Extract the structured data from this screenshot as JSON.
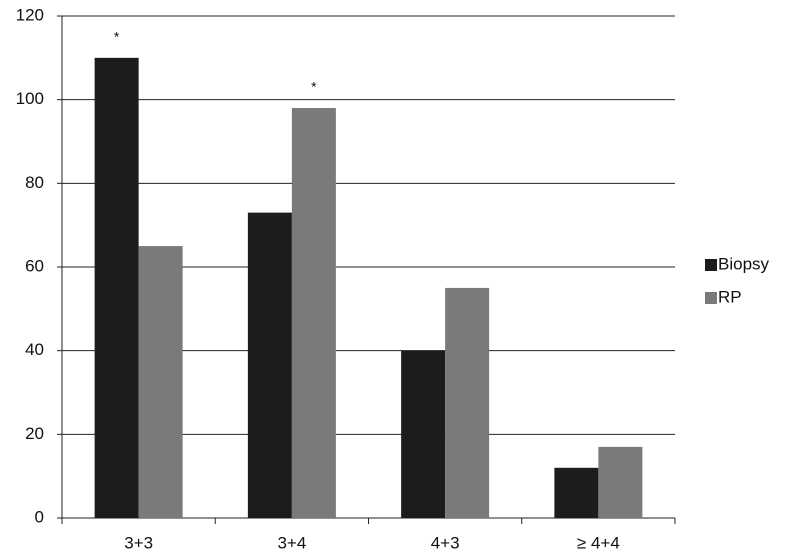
{
  "chart_data": {
    "type": "bar",
    "categories": [
      "3+3",
      "3+4",
      "4+3",
      "≥ 4+4"
    ],
    "series": [
      {
        "name": "Biopsy",
        "color": "#1c1c1c",
        "values": [
          110,
          73,
          40,
          12
        ]
      },
      {
        "name": "RP",
        "color": "#7a7a7a",
        "values": [
          65,
          98,
          55,
          17
        ]
      }
    ],
    "annotations": [
      {
        "text": "*",
        "category": "3+3",
        "series": "Biopsy"
      },
      {
        "text": "*",
        "category": "3+4",
        "series": "RP"
      }
    ],
    "ylim": [
      0,
      120
    ],
    "yticks": [
      0,
      20,
      40,
      60,
      80,
      100,
      120
    ],
    "grid": true,
    "legend": "right"
  }
}
